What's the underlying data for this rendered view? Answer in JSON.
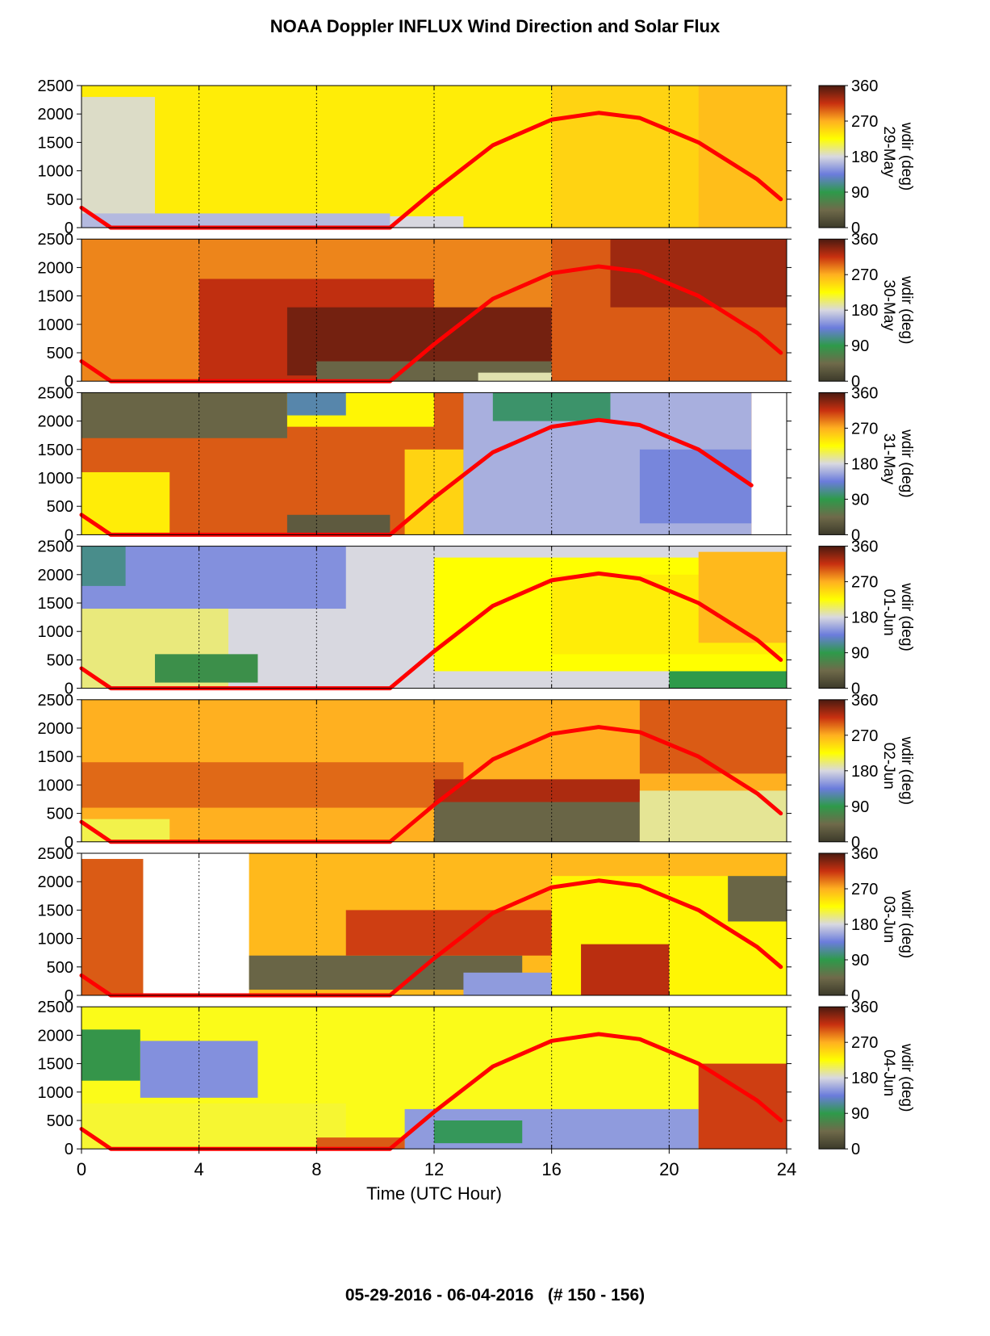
{
  "header": {
    "title": "NOAA Doppler INFLUX Wind Direction and Solar Flux"
  },
  "footer": {
    "date_range": "05-29-2016 - 06-04-2016   (# 150 - 156)"
  },
  "chart_data": {
    "type": "heatmap",
    "title": "NOAA Doppler INFLUX Wind Direction and Solar Flux",
    "xlabel": "Time (UTC Hour)",
    "xlim": [
      0,
      24
    ],
    "x_ticks": [
      0,
      4,
      8,
      12,
      16,
      20,
      24
    ],
    "x_gridlines": [
      4,
      8,
      12,
      16,
      20
    ],
    "ylim": [
      0,
      2500
    ],
    "y_ticks": [
      0,
      500,
      1000,
      1500,
      2000,
      2500
    ],
    "colorbar": {
      "label": "wdir (deg)",
      "range": [
        0,
        360
      ],
      "ticks": [
        0,
        90,
        180,
        270,
        360
      ],
      "stops": [
        {
          "v": 0,
          "color": "#3c3a2a"
        },
        {
          "v": 45,
          "color": "#6f6a4a"
        },
        {
          "v": 90,
          "color": "#2e9a4a"
        },
        {
          "v": 135,
          "color": "#6b7cdc"
        },
        {
          "v": 180,
          "color": "#d8d8e0"
        },
        {
          "v": 225,
          "color": "#ffff00"
        },
        {
          "v": 270,
          "color": "#ffb020"
        },
        {
          "v": 315,
          "color": "#c83010"
        },
        {
          "v": 360,
          "color": "#4a1a10"
        }
      ]
    },
    "solar_flux_line": {
      "color": "#ff0000",
      "x": [
        0,
        1,
        10.5,
        12,
        14,
        16,
        17.6,
        19,
        21,
        23,
        23.8
      ],
      "y": [
        350,
        0,
        0,
        650,
        1450,
        1900,
        2020,
        1930,
        1500,
        850,
        500
      ]
    },
    "panels": [
      {
        "date": "29-May",
        "xmax": 24,
        "gaps": [],
        "regions": [
          {
            "x0": 0,
            "x1": 24,
            "y0": 0,
            "y1": 2500,
            "v": 235
          },
          {
            "x0": 0,
            "x1": 2.5,
            "y0": 200,
            "y1": 2300,
            "v": 185
          },
          {
            "x0": 0,
            "x1": 10.5,
            "y0": 0,
            "y1": 250,
            "v": 165
          },
          {
            "x0": 10.5,
            "x1": 13,
            "y0": 0,
            "y1": 200,
            "v": 180
          },
          {
            "x0": 16,
            "x1": 24,
            "y0": 0,
            "y1": 2500,
            "v": 250
          },
          {
            "x0": 21,
            "x1": 24,
            "y0": 0,
            "y1": 2500,
            "v": 262
          }
        ],
        "sun_x": [
          0,
          1,
          10.5,
          12,
          14,
          16,
          17.6,
          19,
          21,
          23,
          23.8
        ],
        "sun_y": [
          350,
          0,
          0,
          650,
          1450,
          1900,
          2020,
          1930,
          1500,
          850,
          500
        ]
      },
      {
        "date": "30-May",
        "xmax": 24,
        "gaps": [],
        "regions": [
          {
            "x0": 0,
            "x1": 24,
            "y0": 0,
            "y1": 2500,
            "v": 285
          },
          {
            "x0": 4,
            "x1": 12,
            "y0": 0,
            "y1": 1800,
            "v": 318
          },
          {
            "x0": 7,
            "x1": 16,
            "y0": 100,
            "y1": 1300,
            "v": 345
          },
          {
            "x0": 8,
            "x1": 16,
            "y0": 0,
            "y1": 350,
            "v": 40
          },
          {
            "x0": 13.5,
            "x1": 16,
            "y0": 0,
            "y1": 150,
            "v": 190
          },
          {
            "x0": 16,
            "x1": 24,
            "y0": 0,
            "y1": 2500,
            "v": 300
          },
          {
            "x0": 18,
            "x1": 24,
            "y0": 1300,
            "y1": 2500,
            "v": 330
          }
        ],
        "sun_x": [
          0,
          1,
          10.5,
          12,
          14,
          16,
          17.6,
          19,
          21,
          23,
          23.8
        ],
        "sun_y": [
          350,
          0,
          0,
          650,
          1450,
          1900,
          2020,
          1930,
          1500,
          850,
          500
        ]
      },
      {
        "date": "31-May",
        "xmax": 22.8,
        "gaps": [],
        "regions": [
          {
            "x0": 0,
            "x1": 22.8,
            "y0": 0,
            "y1": 2500,
            "v": 300
          },
          {
            "x0": 0,
            "x1": 7,
            "y0": 1700,
            "y1": 2500,
            "v": 40
          },
          {
            "x0": 0,
            "x1": 3,
            "y0": 0,
            "y1": 1100,
            "v": 235
          },
          {
            "x0": 7,
            "x1": 12,
            "y0": 1900,
            "y1": 2500,
            "v": 230
          },
          {
            "x0": 7,
            "x1": 9,
            "y0": 2100,
            "y1": 2500,
            "v": 120
          },
          {
            "x0": 7,
            "x1": 10.5,
            "y0": 0,
            "y1": 350,
            "v": 30
          },
          {
            "x0": 11,
            "x1": 13,
            "y0": 0,
            "y1": 1500,
            "v": 250
          },
          {
            "x0": 13,
            "x1": 22.8,
            "y0": 0,
            "y1": 2500,
            "v": 160
          },
          {
            "x0": 14,
            "x1": 18,
            "y0": 2000,
            "y1": 2500,
            "v": 100
          },
          {
            "x0": 19,
            "x1": 22.8,
            "y0": 200,
            "y1": 1500,
            "v": 140
          }
        ],
        "sun_x": [
          0,
          1,
          10.5,
          12,
          14,
          16,
          17.6,
          19,
          21,
          22.8
        ],
        "sun_y": [
          350,
          0,
          0,
          650,
          1450,
          1900,
          2020,
          1930,
          1500,
          870
        ]
      },
      {
        "date": "01-Jun",
        "xmax": 24,
        "gaps": [],
        "regions": [
          {
            "x0": 0,
            "x1": 24,
            "y0": 0,
            "y1": 2500,
            "v": 180
          },
          {
            "x0": 0,
            "x1": 9,
            "y0": 1400,
            "y1": 2500,
            "v": 145
          },
          {
            "x0": 0,
            "x1": 1.5,
            "y0": 1800,
            "y1": 2500,
            "v": 110
          },
          {
            "x0": 0,
            "x1": 5,
            "y0": 0,
            "y1": 1400,
            "v": 200
          },
          {
            "x0": 2.5,
            "x1": 6,
            "y0": 100,
            "y1": 600,
            "v": 80
          },
          {
            "x0": 12,
            "x1": 24,
            "y0": 300,
            "y1": 2300,
            "v": 225
          },
          {
            "x0": 16,
            "x1": 24,
            "y0": 600,
            "y1": 2000,
            "v": 235
          },
          {
            "x0": 20,
            "x1": 24,
            "y0": 0,
            "y1": 300,
            "v": 90
          },
          {
            "x0": 21,
            "x1": 24,
            "y0": 800,
            "y1": 2400,
            "v": 265
          }
        ],
        "sun_x": [
          0,
          1,
          10.5,
          12,
          14,
          16,
          17.6,
          19,
          21,
          23,
          23.8
        ],
        "sun_y": [
          350,
          0,
          0,
          650,
          1450,
          1900,
          2020,
          1930,
          1500,
          850,
          500
        ]
      },
      {
        "date": "02-Jun",
        "xmax": 24,
        "gaps": [],
        "regions": [
          {
            "x0": 0,
            "x1": 24,
            "y0": 0,
            "y1": 2500,
            "v": 270
          },
          {
            "x0": 0,
            "x1": 13,
            "y0": 600,
            "y1": 1400,
            "v": 295
          },
          {
            "x0": 0,
            "x1": 3,
            "y0": 0,
            "y1": 400,
            "v": 210
          },
          {
            "x0": 12,
            "x1": 19,
            "y0": 0,
            "y1": 700,
            "v": 40
          },
          {
            "x0": 12,
            "x1": 19,
            "y0": 700,
            "y1": 1100,
            "v": 325
          },
          {
            "x0": 19,
            "x1": 24,
            "y0": 0,
            "y1": 900,
            "v": 195
          },
          {
            "x0": 19,
            "x1": 24,
            "y0": 1200,
            "y1": 2500,
            "v": 300
          }
        ],
        "sun_x": [
          0,
          1,
          10.5,
          12,
          14,
          16,
          17.6,
          19,
          21,
          23,
          23.8
        ],
        "sun_y": [
          350,
          0,
          0,
          650,
          1450,
          1900,
          2020,
          1930,
          1500,
          850,
          500
        ]
      },
      {
        "date": "03-Jun",
        "xmax": 24,
        "gaps": [
          [
            2.1,
            5.7
          ]
        ],
        "regions": [
          {
            "x0": 0,
            "x1": 2.1,
            "y0": 0,
            "y1": 2400,
            "v": 300
          },
          {
            "x0": 5.7,
            "x1": 24,
            "y0": 0,
            "y1": 2500,
            "v": 265
          },
          {
            "x0": 5.7,
            "x1": 15,
            "y0": 100,
            "y1": 700,
            "v": 40
          },
          {
            "x0": 9,
            "x1": 17,
            "y0": 700,
            "y1": 1500,
            "v": 310
          },
          {
            "x0": 13,
            "x1": 17,
            "y0": 0,
            "y1": 400,
            "v": 150
          },
          {
            "x0": 16,
            "x1": 24,
            "y0": 0,
            "y1": 2100,
            "v": 230
          },
          {
            "x0": 17,
            "x1": 20,
            "y0": 0,
            "y1": 900,
            "v": 320
          },
          {
            "x0": 22,
            "x1": 24,
            "y0": 1300,
            "y1": 2100,
            "v": 40
          }
        ],
        "sun_x": [
          0,
          1,
          2.1,
          10.5,
          12,
          14,
          16,
          17.6,
          19,
          21,
          23,
          23.8
        ],
        "sun_y": [
          350,
          0,
          0,
          0,
          650,
          1450,
          1900,
          2020,
          1930,
          1500,
          850,
          500
        ]
      },
      {
        "date": "04-Jun",
        "xmax": 24,
        "gaps": [],
        "regions": [
          {
            "x0": 0,
            "x1": 24,
            "y0": 0,
            "y1": 2500,
            "v": 220
          },
          {
            "x0": 0,
            "x1": 2,
            "y0": 1200,
            "y1": 2100,
            "v": 85
          },
          {
            "x0": 2,
            "x1": 6,
            "y0": 900,
            "y1": 1900,
            "v": 145
          },
          {
            "x0": 0,
            "x1": 9,
            "y0": 0,
            "y1": 800,
            "v": 215
          },
          {
            "x0": 11,
            "x1": 21,
            "y0": 0,
            "y1": 700,
            "v": 150
          },
          {
            "x0": 12,
            "x1": 15,
            "y0": 100,
            "y1": 500,
            "v": 95
          },
          {
            "x0": 8,
            "x1": 11,
            "y0": 0,
            "y1": 200,
            "v": 300
          },
          {
            "x0": 21,
            "x1": 24,
            "y0": 0,
            "y1": 1500,
            "v": 310
          }
        ],
        "sun_x": [
          0,
          1,
          10.5,
          12,
          14,
          16,
          17.6,
          19,
          21,
          23,
          23.8
        ],
        "sun_y": [
          350,
          0,
          0,
          650,
          1450,
          1900,
          2020,
          1930,
          1500,
          850,
          500
        ]
      }
    ]
  }
}
